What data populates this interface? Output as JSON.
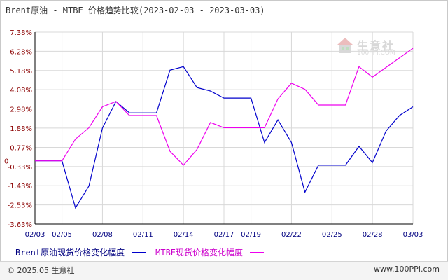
{
  "title": "Brent原油 - MTBE 价格趋势比较(2023-02-03 - 2023-03-03)",
  "watermark": {
    "name": "生意社",
    "url": "100PPI.COM"
  },
  "footer": {
    "copyright": "© 2025.05 生意社",
    "site": "www.100PPI.com"
  },
  "chart_data": {
    "type": "line",
    "title": "Brent原油 - MTBE 价格趋势比较(2023-02-03 - 2023-03-03)",
    "x": [
      "02/03",
      "02/04",
      "02/05",
      "02/06",
      "02/07",
      "02/08",
      "02/09",
      "02/10",
      "02/11",
      "02/12",
      "02/13",
      "02/14",
      "02/15",
      "02/16",
      "02/17",
      "02/18",
      "02/19",
      "02/20",
      "02/21",
      "02/22",
      "02/23",
      "02/24",
      "02/25",
      "02/26",
      "02/27",
      "02/28",
      "03/01",
      "03/02",
      "03/03"
    ],
    "xticks": [
      "02/03",
      "02/05",
      "02/08",
      "02/11",
      "02/14",
      "02/17",
      "02/19",
      "02/22",
      "02/25",
      "02/28",
      "03/03"
    ],
    "yticks": [
      "7.38%",
      "6.28%",
      "5.18%",
      "4.08%",
      "2.98%",
      "1.88%",
      "0.77%",
      "-0.33%",
      "-1.43%",
      "-2.53%",
      "-3.63%"
    ],
    "ytick_values": [
      7.38,
      6.28,
      5.18,
      4.08,
      2.98,
      1.88,
      0.77,
      -0.33,
      -1.43,
      -2.53,
      -3.63
    ],
    "zero_label": "0",
    "ylim": [
      -3.63,
      7.38
    ],
    "grid": true,
    "legend_position": "bottom",
    "colors": {
      "grid": "#d8d8d8",
      "axis": "#000000",
      "tick_text": "#8b0000",
      "xtick_text": "#000080",
      "brent": "#0000cc",
      "mtbe": "#ee00ee"
    },
    "series": [
      {
        "name": "Brent原油现货价格变化幅度",
        "color": "#0000cc",
        "values": [
          0,
          0,
          0,
          -2.7,
          -1.45,
          1.88,
          3.4,
          2.75,
          2.75,
          2.75,
          5.2,
          5.4,
          4.2,
          4.0,
          3.6,
          3.6,
          3.6,
          1.05,
          2.35,
          1.05,
          -1.8,
          -0.25,
          -0.25,
          -0.25,
          0.83,
          -0.1,
          1.7,
          2.6,
          3.1
        ]
      },
      {
        "name": "MTBE现货价格变化幅度",
        "color": "#ee00ee",
        "values": [
          0,
          0,
          0,
          1.25,
          1.9,
          3.1,
          3.4,
          2.6,
          2.6,
          2.6,
          0.55,
          -0.25,
          0.65,
          2.2,
          1.9,
          1.9,
          1.9,
          1.9,
          3.55,
          4.45,
          4.1,
          3.2,
          3.2,
          3.2,
          5.4,
          4.8,
          5.35,
          5.9,
          6.45
        ]
      }
    ]
  }
}
